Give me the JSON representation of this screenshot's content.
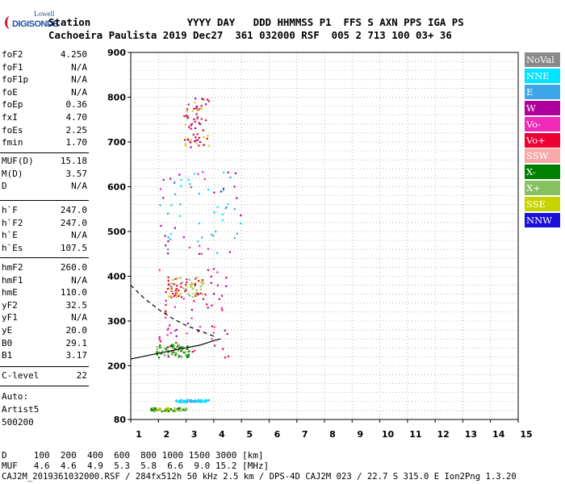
{
  "logo": {
    "line1": "Lowell",
    "line2": "DIGISONDE"
  },
  "header": {
    "line1": "Station                YYYY DAY   DDD HHMMSS P1  FFS S AXN PPS IGA PS",
    "line2": "Cachoeira Paulista 2019 Dec27  361 032000 RSF  005 2 713 100 03+ 36"
  },
  "params": {
    "group1": [
      {
        "name": "foF2",
        "value": "4.250"
      },
      {
        "name": "foF1",
        "value": "N/A"
      },
      {
        "name": "foF1p",
        "value": "N/A"
      },
      {
        "name": "foE",
        "value": "N/A"
      },
      {
        "name": "foEp",
        "value": "0.36"
      },
      {
        "name": "fxI",
        "value": "4.70"
      },
      {
        "name": "foEs",
        "value": "2.25"
      },
      {
        "name": "fmin",
        "value": "1.70"
      }
    ],
    "group2": [
      {
        "name": "MUF(D)",
        "value": "15.18"
      },
      {
        "name": "M(D)",
        "value": "3.57"
      },
      {
        "name": "D",
        "value": "N/A"
      }
    ],
    "group3": [
      {
        "name": "h`F",
        "value": "247.0"
      },
      {
        "name": "h`F2",
        "value": "247.0"
      },
      {
        "name": "h`E",
        "value": "N/A"
      },
      {
        "name": "h`Es",
        "value": "107.5"
      }
    ],
    "group4": [
      {
        "name": "hmF2",
        "value": "260.0"
      },
      {
        "name": "hmF1",
        "value": "N/A"
      },
      {
        "name": "hmE",
        "value": "110.0"
      },
      {
        "name": "yF2",
        "value": "32.5"
      },
      {
        "name": "yF1",
        "value": "N/A"
      },
      {
        "name": "yE",
        "value": "20.0"
      },
      {
        "name": "B0",
        "value": "29.1"
      },
      {
        "name": "B1",
        "value": "3.17"
      }
    ],
    "group5": [
      {
        "name": "C-level",
        "value": "22"
      }
    ],
    "autoscale": [
      "Auto:",
      "Artist5",
      "500200"
    ]
  },
  "footer": {
    "d_line": "D     100  200  400  600  800 1000 1500 3000 [km]",
    "muf_line": "MUF   4.6  4.6  4.9  5.3  5.8  6.6  9.0 15.2 [MHz]",
    "file_line": "CAJ2M_2019361032000.RSF / 284fx512h 50 kHz 2.5 km / DPS-4D CAJ2M 023 / 22.7 S 315.0 E Ion2Png 1.3.20"
  },
  "legend": [
    {
      "label": "NoVal",
      "color": "#8a8a8a"
    },
    {
      "label": "NNE",
      "color": "#00e5ff"
    },
    {
      "label": "E",
      "color": "#3aa7e8"
    },
    {
      "label": "W",
      "color": "#b0009b"
    },
    {
      "label": "Vo-",
      "color": "#f029b8"
    },
    {
      "label": "Vo+",
      "color": "#ee0033"
    },
    {
      "label": "SSW",
      "color": "#f7a9a9"
    },
    {
      "label": "X-",
      "color": "#008000"
    },
    {
      "label": "X+",
      "color": "#88c060"
    },
    {
      "label": "SSE",
      "color": "#c8d400"
    },
    {
      "label": "NNW",
      "color": "#1a10d8"
    }
  ],
  "chart_data": {
    "type": "scatter",
    "title": "",
    "xlabel": "",
    "ylabel": "",
    "xlim": [
      1,
      15
    ],
    "ylim": [
      80,
      900
    ],
    "xticks": [
      1,
      2,
      3,
      4,
      5,
      6,
      7,
      8,
      9,
      10,
      11,
      12,
      13,
      14,
      15
    ],
    "yticks": [
      80,
      200,
      300,
      400,
      500,
      600,
      700,
      800,
      900
    ],
    "grid": true,
    "legend_position": "right",
    "clusters": [
      {
        "name": "Es echo",
        "series": [
          "X+",
          "X-",
          "SSE"
        ],
        "x": [
          1.7,
          3.0
        ],
        "y": [
          100,
          108
        ]
      },
      {
        "name": "Es multiple",
        "series": [
          "NNE",
          "E"
        ],
        "x": [
          2.6,
          3.8
        ],
        "y": [
          120,
          126
        ]
      },
      {
        "name": "F2 ordinary",
        "series": [
          "Vo+",
          "Vo-",
          "W"
        ],
        "x": [
          2.0,
          4.5
        ],
        "y": [
          220,
          420
        ]
      },
      {
        "name": "F2 extraordinary",
        "series": [
          "X+",
          "X-"
        ],
        "x": [
          1.9,
          3.1
        ],
        "y": [
          220,
          250
        ]
      },
      {
        "name": "F2 second hop",
        "series": [
          "W",
          "Vo-",
          "NNE",
          "E"
        ],
        "x": [
          2.0,
          5.0
        ],
        "y": [
          450,
          640
        ]
      },
      {
        "name": "Es second multiple",
        "series": [
          "Vo+",
          "X+",
          "SSE"
        ],
        "x": [
          2.3,
          3.6
        ],
        "y": [
          355,
          400
        ]
      },
      {
        "name": "F2 third hop",
        "series": [
          "W",
          "Vo+",
          "SSE"
        ],
        "x": [
          2.9,
          3.8
        ],
        "y": [
          690,
          800
        ]
      }
    ],
    "profile_solid": {
      "x": [
        1.0,
        2.0,
        3.0,
        3.5,
        4.0,
        4.25
      ],
      "y": [
        215,
        228,
        240,
        246,
        256,
        260
      ]
    },
    "profile_dashed": {
      "x": [
        1.0,
        1.5,
        2.0,
        2.5,
        3.0,
        3.5,
        4.0
      ],
      "y": [
        380,
        350,
        326,
        306,
        290,
        278,
        266
      ]
    }
  }
}
